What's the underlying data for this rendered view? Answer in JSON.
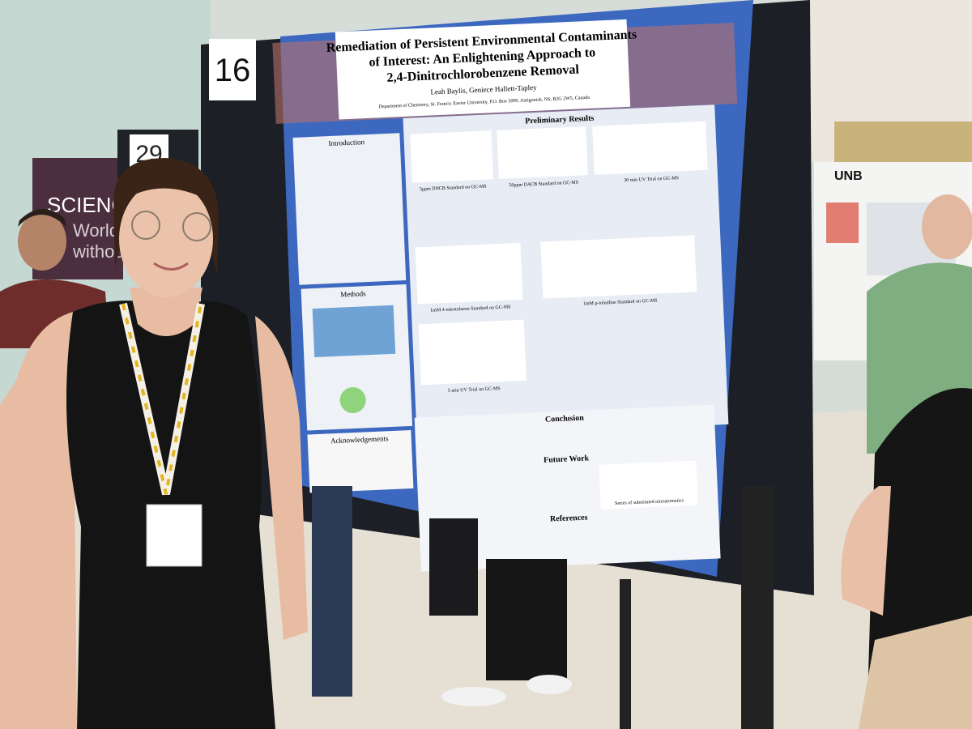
{
  "signs": {
    "booth": "16",
    "neighbor_booth": "29"
  },
  "banner": {
    "word": "SCIENCE",
    "line1": "World",
    "line2": "without"
  },
  "poster": {
    "title_lines": [
      "Remediation of Persistent Environmental Contaminants",
      "of Interest: An Enlightening Approach to",
      "2,4-Dinitrochlorobenzene Removal"
    ],
    "authors": "Leah Baylis, Geniece Hallett-Tapley",
    "affiliation": "Department of Chemistry, St. Francis Xavier University, P.O. Box 5000, Antigonish, NS, B2G 2W5, Canada",
    "sections": {
      "introduction": "Introduction",
      "methods": "Methods",
      "acknowledgements": "Acknowledgements",
      "results": "Preliminary Results",
      "conclusion": "Conclusion",
      "future_work": "Future Work",
      "references": "References"
    },
    "captions": {
      "dncb": "5ppm DNCB Standard on GC-MS",
      "dacb": "50ppm DACB Standard on GC-MS",
      "uv30": "30 min UV Trial on GC-MS",
      "nitrotoluene": "1mM 4-nitrotoluene Standard on GC-MS",
      "toluidine": "1mM p-toluidine Standard on GC-MS",
      "uv5": "5 min UV Trial on GC-MS",
      "series": "Series of substituted nitroaromatics"
    }
  },
  "neighbor_poster": {
    "logo": "UNB"
  }
}
